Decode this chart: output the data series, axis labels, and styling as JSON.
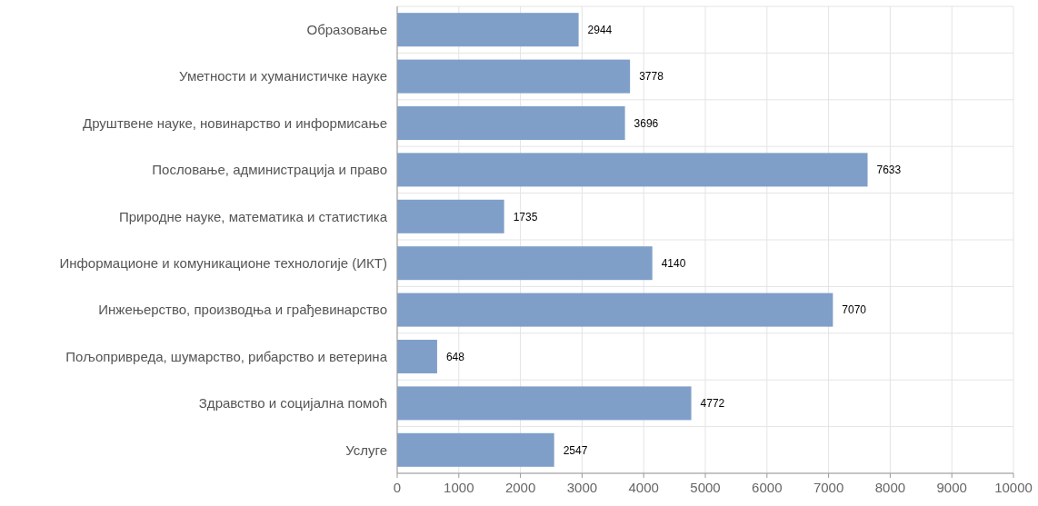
{
  "chart_data": {
    "type": "bar",
    "orientation": "horizontal",
    "categories": [
      "Образовање",
      "Уметности и хуманистичке науке",
      "Друштвене науке, новинарство и информисање",
      "Пословање, администрација и право",
      "Природне науке, математика и статистика",
      "Информационе и комуникационе технологије (ИКТ)",
      "Инжењерство, производња и грађевинарство",
      "Пољопривреда, шумарство, рибарство и ветерина",
      "Здравство и социјална помоћ",
      "Услуге"
    ],
    "values": [
      2944,
      3778,
      3696,
      7633,
      1735,
      4140,
      7070,
      648,
      4772,
      2547
    ],
    "color": "#7f9fc9",
    "xlim": [
      0,
      10000
    ],
    "xticks": [
      0,
      1000,
      2000,
      3000,
      4000,
      5000,
      6000,
      7000,
      8000,
      9000,
      10000
    ],
    "grid": true,
    "data_labels": true
  }
}
